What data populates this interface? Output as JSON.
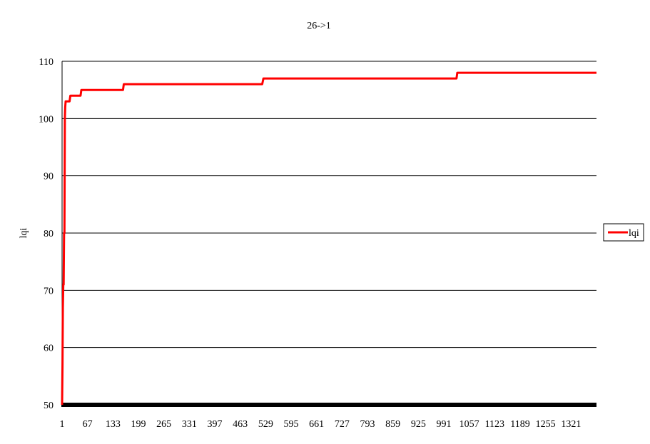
{
  "chart_data": {
    "type": "line",
    "title": "26->1",
    "xlabel": "",
    "ylabel": "lqi",
    "ylim": [
      50,
      110
    ],
    "xlim": [
      1,
      1360
    ],
    "y_ticks": [
      "50",
      "60",
      "70",
      "80",
      "90",
      "100",
      "110"
    ],
    "x_ticks": [
      "1",
      "67",
      "133",
      "199",
      "265",
      "331",
      "397",
      "463",
      "529",
      "595",
      "661",
      "727",
      "793",
      "859",
      "925",
      "991",
      "1057",
      "1123",
      "1189",
      "1255",
      "1321"
    ],
    "grid": "horizontal",
    "legend": "right",
    "series": [
      {
        "name": "lqi",
        "color": "#ff0000",
        "points": [
          [
            1,
            50
          ],
          [
            2,
            57
          ],
          [
            3,
            67
          ],
          [
            4,
            71
          ],
          [
            5,
            71
          ],
          [
            6,
            80
          ],
          [
            7,
            80
          ],
          [
            8,
            100
          ],
          [
            9,
            102
          ],
          [
            10,
            103
          ],
          [
            20,
            103
          ],
          [
            22,
            104
          ],
          [
            48,
            104
          ],
          [
            50,
            105
          ],
          [
            156,
            105
          ],
          [
            158,
            106
          ],
          [
            510,
            106
          ],
          [
            513,
            107
          ],
          [
            1004,
            107
          ],
          [
            1006,
            108
          ],
          [
            1360,
            108
          ]
        ]
      }
    ]
  },
  "colors": {
    "series": "#ff0000",
    "grid": "#000000",
    "baseline": "#000000"
  }
}
